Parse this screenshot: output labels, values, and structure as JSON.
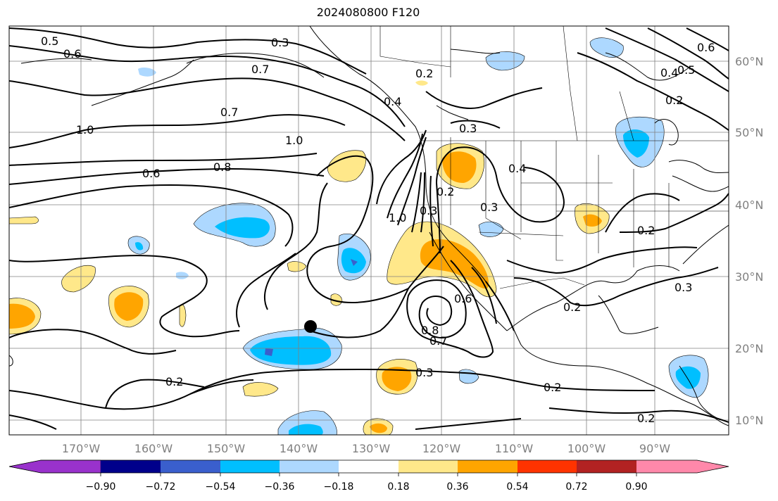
{
  "map": {
    "title": "2024080800 F120",
    "latitude_labels": [
      "60°N",
      "50°N",
      "40°N",
      "30°N",
      "20°N",
      "10°N"
    ],
    "longitude_labels": [
      "170°W",
      "160°W",
      "150°W",
      "140°W",
      "130°W",
      "120°W",
      "110°W",
      "100°W",
      "90°W"
    ],
    "contour_labels": [
      "0.5",
      "0.6",
      "0.3",
      "0.7",
      "0.2",
      "0.4",
      "0.5",
      "0.4",
      "0.2",
      "0.6",
      "1.0",
      "0.7",
      "1.0",
      "0.8",
      "0.6",
      "0.3",
      "0.4",
      "0.2",
      "0.3",
      "1.0",
      "0.3",
      "0.2",
      "0.6",
      "0.8",
      "0.7",
      "0.2",
      "0.3",
      "0.3",
      "0.2",
      "0.2",
      "0.2"
    ],
    "marker": "storm-center-dot",
    "colorbar": {
      "tick_labels": [
        "−0.90",
        "−0.72",
        "−0.54",
        "−0.36",
        "−0.18",
        "0.18",
        "0.36",
        "0.54",
        "0.72",
        "0.90"
      ],
      "colors": [
        "#9932cc",
        "#00008b",
        "#3a5fcd",
        "#00bfff",
        "#add8ff",
        "#ffffff",
        "#ffe88a",
        "#ffa500",
        "#ff3300",
        "#b22222",
        "#ff88aa"
      ]
    }
  }
}
